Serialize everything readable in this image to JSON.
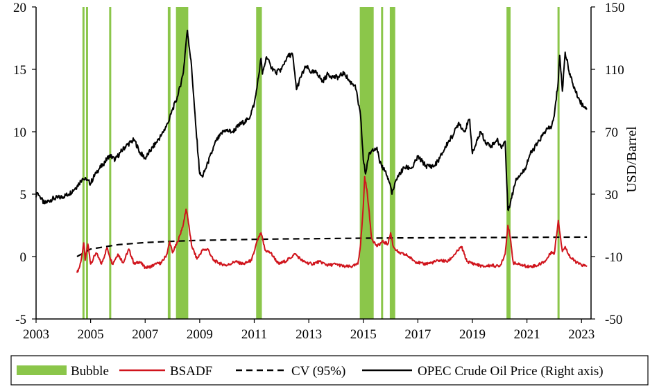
{
  "chart_data": {
    "type": "line",
    "x_axis": {
      "min": 2003,
      "max": 2023.35,
      "ticks": [
        2003,
        2005,
        2007,
        2009,
        2011,
        2013,
        2015,
        2017,
        2019,
        2021,
        2023
      ],
      "tick_labels": [
        "2003",
        "2005",
        "2007",
        "2009",
        "2011",
        "2013",
        "2015",
        "2017",
        "2019",
        "2021",
        "2023"
      ]
    },
    "y_axis_left": {
      "min": -5,
      "max": 20,
      "ticks": [
        -5,
        0,
        5,
        10,
        15,
        20
      ],
      "tick_labels": [
        "-5",
        "0",
        "5",
        "10",
        "15",
        "20"
      ]
    },
    "y_axis_right": {
      "label": "USD/Barrel",
      "min": -50,
      "max": 150,
      "ticks": [
        -50,
        -10,
        30,
        70,
        110,
        150
      ],
      "tick_labels": [
        "-50",
        "-10",
        "30",
        "70",
        "110",
        "150"
      ]
    },
    "grid": false,
    "legend_position": "bottom",
    "bubble_periods": [
      [
        2004.7,
        2004.76
      ],
      [
        2004.83,
        2004.88
      ],
      [
        2005.68,
        2005.72
      ],
      [
        2007.83,
        2007.93
      ],
      [
        2008.13,
        2008.58
      ],
      [
        2011.07,
        2011.28
      ],
      [
        2014.87,
        2015.38
      ],
      [
        2015.65,
        2015.7
      ],
      [
        2015.97,
        2016.17
      ],
      [
        2020.25,
        2020.4
      ],
      [
        2022.12,
        2022.17
      ]
    ],
    "series": [
      {
        "name": "Bubble",
        "axis": "left",
        "color": "#8bc64a",
        "style": "band"
      },
      {
        "name": "BSADF",
        "axis": "left",
        "color": "#d0141c",
        "style": "solid",
        "x": [
          2004.5,
          2004.6,
          2004.7,
          2004.75,
          2004.8,
          2004.9,
          2005.0,
          2005.2,
          2005.4,
          2005.6,
          2005.8,
          2006.0,
          2006.2,
          2006.4,
          2006.6,
          2006.8,
          2007.0,
          2007.2,
          2007.4,
          2007.6,
          2007.8,
          2007.9,
          2008.0,
          2008.2,
          2008.4,
          2008.5,
          2008.55,
          2008.7,
          2008.9,
          2009.1,
          2009.3,
          2009.5,
          2009.8,
          2010.0,
          2010.3,
          2010.6,
          2010.9,
          2011.0,
          2011.1,
          2011.25,
          2011.4,
          2011.6,
          2011.9,
          2012.2,
          2012.5,
          2012.8,
          2013.1,
          2013.4,
          2013.7,
          2014.0,
          2014.3,
          2014.6,
          2014.8,
          2014.9,
          2015.0,
          2015.05,
          2015.15,
          2015.3,
          2015.5,
          2015.7,
          2015.9,
          2016.0,
          2016.1,
          2016.3,
          2016.6,
          2016.9,
          2017.2,
          2017.5,
          2017.8,
          2018.1,
          2018.4,
          2018.6,
          2018.8,
          2019.1,
          2019.4,
          2019.7,
          2020.0,
          2020.2,
          2020.3,
          2020.35,
          2020.5,
          2020.8,
          2021.1,
          2021.4,
          2021.7,
          2021.9,
          2022.0,
          2022.15,
          2022.3,
          2022.4,
          2022.6,
          2022.9,
          2023.2
        ],
        "y": [
          -1.3,
          -0.8,
          0.3,
          1.1,
          -0.3,
          1.0,
          -0.6,
          0.3,
          -0.6,
          0.7,
          -0.6,
          0.2,
          -0.5,
          0.6,
          -0.6,
          -0.4,
          -0.9,
          -0.8,
          -0.6,
          -0.5,
          0.2,
          1.2,
          0.3,
          1.2,
          2.6,
          3.8,
          3.3,
          0.9,
          -0.2,
          0.5,
          0.6,
          -0.3,
          -0.6,
          -0.7,
          -0.4,
          -0.6,
          -0.3,
          0.4,
          1.2,
          1.9,
          0.5,
          0.3,
          -0.6,
          -0.3,
          0.2,
          -0.4,
          -0.6,
          -0.4,
          -0.7,
          -0.6,
          -0.8,
          -0.8,
          -0.6,
          1.0,
          4.0,
          6.4,
          5.0,
          1.5,
          0.8,
          1.2,
          1.0,
          1.9,
          0.8,
          0.3,
          0.1,
          -0.4,
          -0.6,
          -0.5,
          -0.3,
          -0.4,
          0.3,
          0.8,
          -0.4,
          -0.6,
          -0.8,
          -0.7,
          -0.8,
          0.2,
          2.5,
          2.1,
          -0.5,
          -0.7,
          -0.8,
          -0.7,
          -0.3,
          0.4,
          0.2,
          2.9,
          0.4,
          0.8,
          -0.1,
          -0.6,
          -0.8
        ]
      },
      {
        "name": "CV (95%)",
        "axis": "left",
        "color": "#000000",
        "style": "dashed",
        "x": [
          2004.5,
          2005.0,
          2006.0,
          2007.0,
          2008.0,
          2009.0,
          2010.0,
          2011.0,
          2012.0,
          2013.0,
          2014.0,
          2015.0,
          2016.0,
          2017.0,
          2018.0,
          2019.0,
          2020.0,
          2021.0,
          2022.0,
          2023.2
        ],
        "y": [
          0.0,
          0.6,
          0.95,
          1.12,
          1.22,
          1.3,
          1.34,
          1.38,
          1.41,
          1.43,
          1.45,
          1.47,
          1.49,
          1.5,
          1.51,
          1.52,
          1.53,
          1.54,
          1.55,
          1.56
        ]
      },
      {
        "name": "OPEC Crude Oil Price (Right axis)",
        "axis": "right",
        "color": "#000000",
        "style": "solid",
        "x": [
          2003.0,
          2003.05,
          2003.15,
          2003.3,
          2003.6,
          2003.9,
          2004.2,
          2004.5,
          2004.7,
          2004.85,
          2005.0,
          2005.2,
          2005.45,
          2005.7,
          2005.9,
          2006.1,
          2006.3,
          2006.6,
          2006.8,
          2007.0,
          2007.2,
          2007.4,
          2007.6,
          2007.85,
          2008.0,
          2008.2,
          2008.4,
          2008.5,
          2008.55,
          2008.7,
          2008.85,
          2009.0,
          2009.1,
          2009.3,
          2009.6,
          2009.9,
          2010.2,
          2010.5,
          2010.8,
          2011.0,
          2011.1,
          2011.25,
          2011.3,
          2011.45,
          2011.6,
          2011.8,
          2012.0,
          2012.2,
          2012.4,
          2012.55,
          2012.7,
          2012.9,
          2013.1,
          2013.3,
          2013.5,
          2013.7,
          2013.9,
          2014.1,
          2014.3,
          2014.5,
          2014.7,
          2014.9,
          2015.0,
          2015.08,
          2015.2,
          2015.35,
          2015.5,
          2015.6,
          2015.8,
          2016.0,
          2016.05,
          2016.25,
          2016.5,
          2016.8,
          2017.0,
          2017.3,
          2017.6,
          2017.8,
          2018.1,
          2018.3,
          2018.5,
          2018.7,
          2018.9,
          2019.0,
          2019.3,
          2019.5,
          2019.7,
          2019.9,
          2020.05,
          2020.2,
          2020.3,
          2020.4,
          2020.6,
          2020.9,
          2021.1,
          2021.4,
          2021.7,
          2021.9,
          2022.0,
          2022.15,
          2022.2,
          2022.3,
          2022.4,
          2022.6,
          2022.8,
          2023.0,
          2023.2
        ],
        "y": [
          28,
          31,
          28,
          24,
          27,
          28,
          30,
          35,
          40,
          39,
          37,
          44,
          49,
          55,
          52,
          57,
          61,
          65,
          57,
          53,
          58,
          63,
          68,
          76,
          84,
          93,
          108,
          127,
          135,
          112,
          75,
          43,
          41,
          50,
          64,
          71,
          70,
          75,
          78,
          88,
          98,
          117,
          107,
          118,
          112,
          108,
          110,
          118,
          120,
          97,
          105,
          112,
          108,
          108,
          102,
          107,
          105,
          105,
          108,
          102,
          100,
          80,
          52,
          43,
          55,
          59,
          60,
          50,
          45,
          35,
          30,
          41,
          47,
          47,
          54,
          48,
          48,
          53,
          63,
          68,
          76,
          70,
          78,
          56,
          70,
          63,
          61,
          65,
          60,
          64,
          20,
          25,
          40,
          45,
          55,
          63,
          71,
          73,
          80,
          103,
          119,
          96,
          121,
          105,
          95,
          88,
          85
        ]
      }
    ]
  }
}
